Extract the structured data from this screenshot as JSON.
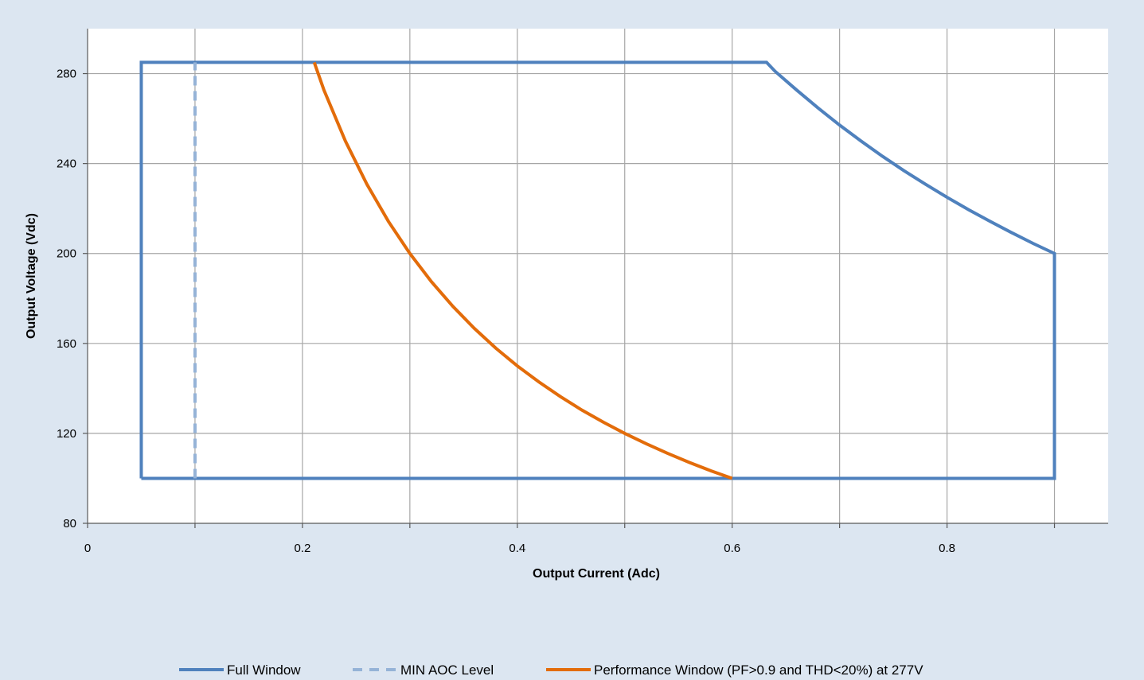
{
  "chart_data": {
    "type": "line",
    "title": "",
    "xlabel": "Output Current (Adc)",
    "ylabel": "Output Voltage (Vdc)",
    "xlim": [
      0,
      0.95
    ],
    "ylim": [
      80,
      300
    ],
    "x_ticks": [
      0,
      0.2,
      0.4,
      0.6,
      0.8
    ],
    "x_tick_labels": [
      "0",
      "0.2",
      "0.4",
      "0.6",
      "0.8"
    ],
    "y_ticks": [
      80,
      120,
      160,
      200,
      240,
      280
    ],
    "y_tick_labels": [
      "80",
      "120",
      "160",
      "200",
      "240",
      "280"
    ],
    "grid": true,
    "legend_position": "bottom",
    "series": [
      {
        "name": "Full Window",
        "color": "#4f81bd",
        "style": "solid",
        "points": [
          [
            0.05,
            100
          ],
          [
            0.05,
            285
          ],
          [
            0.632,
            285
          ],
          [
            0.64,
            281
          ],
          [
            0.66,
            272.7
          ],
          [
            0.68,
            264.7
          ],
          [
            0.7,
            257.1
          ],
          [
            0.72,
            250
          ],
          [
            0.74,
            243.2
          ],
          [
            0.76,
            236.8
          ],
          [
            0.78,
            230.8
          ],
          [
            0.8,
            225
          ],
          [
            0.82,
            219.5
          ],
          [
            0.84,
            214.3
          ],
          [
            0.86,
            209.3
          ],
          [
            0.88,
            204.5
          ],
          [
            0.9,
            200
          ],
          [
            0.9,
            100
          ],
          [
            0.05,
            100
          ]
        ]
      },
      {
        "name": "MIN AOC Level",
        "color": "#95b3d7",
        "style": "dashed",
        "points": [
          [
            0.1,
            100
          ],
          [
            0.1,
            285
          ]
        ]
      },
      {
        "name": "Performance Window (PF>0.9 and THD<20%) at 277V",
        "color": "#e36c0a",
        "style": "solid",
        "points": [
          [
            0.211,
            285
          ],
          [
            0.22,
            272.7
          ],
          [
            0.24,
            250
          ],
          [
            0.26,
            230.8
          ],
          [
            0.28,
            214.3
          ],
          [
            0.3,
            200
          ],
          [
            0.32,
            187.5
          ],
          [
            0.34,
            176.5
          ],
          [
            0.36,
            166.7
          ],
          [
            0.38,
            157.9
          ],
          [
            0.4,
            150
          ],
          [
            0.42,
            142.9
          ],
          [
            0.44,
            136.4
          ],
          [
            0.46,
            130.4
          ],
          [
            0.48,
            125
          ],
          [
            0.5,
            120
          ],
          [
            0.52,
            115.4
          ],
          [
            0.54,
            111.1
          ],
          [
            0.56,
            107.1
          ],
          [
            0.58,
            103.4
          ],
          [
            0.6,
            100
          ]
        ]
      }
    ]
  }
}
